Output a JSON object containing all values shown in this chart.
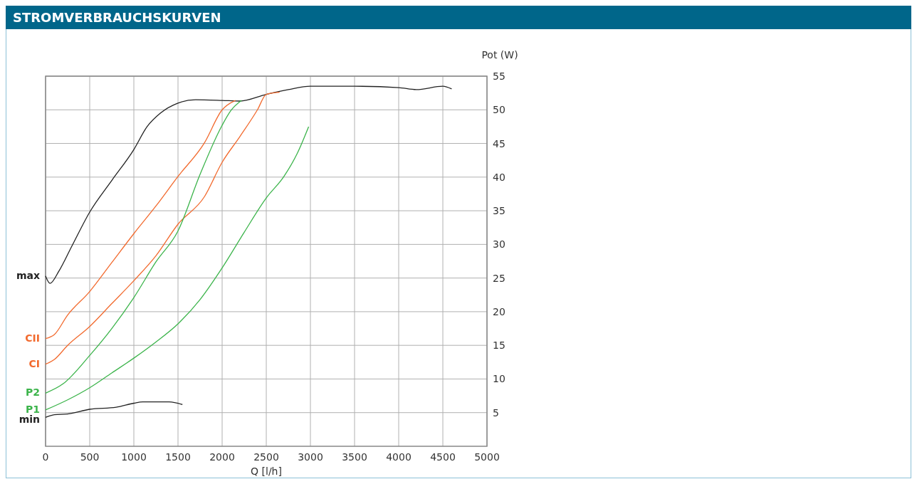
{
  "chart_data": {
    "type": "line",
    "title": "STROMVERBRAUCHSKURVEN",
    "xlabel": "Q [l/h]",
    "ylabel": "Pot (W)",
    "xlim": [
      0,
      5000
    ],
    "xticks": [
      0,
      500,
      1000,
      1500,
      2000,
      2500,
      3000,
      3500,
      4000,
      4500,
      5000
    ],
    "ylim": [
      0,
      55
    ],
    "yticks": [
      5,
      10,
      15,
      20,
      25,
      30,
      35,
      40,
      45,
      50,
      55
    ],
    "grid": true,
    "marker": "none",
    "line_style": "solid",
    "series": [
      {
        "name": "max",
        "color": "#222222",
        "x": [
          0,
          50,
          150,
          300,
          500,
          750,
          1000,
          1150,
          1300,
          1500,
          1700,
          2000,
          2200,
          2500,
          2750,
          3000,
          3500,
          4000,
          4200,
          4500,
          4600
        ],
        "values": [
          25.3,
          24.2,
          26.0,
          29.8,
          34.8,
          39.5,
          44.1,
          47.5,
          49.5,
          51.0,
          51.5,
          51.4,
          51.3,
          52.3,
          53.0,
          53.5,
          53.5,
          53.3,
          53.0,
          53.5,
          53.1
        ]
      },
      {
        "name": "CII",
        "color": "#f26a2e",
        "x": [
          0,
          100,
          250,
          500,
          750,
          1000,
          1250,
          1500,
          1800,
          2000,
          2150
        ],
        "values": [
          16.0,
          16.6,
          19.5,
          23.0,
          27.3,
          31.6,
          35.7,
          40.1,
          45.1,
          50.0,
          51.4
        ]
      },
      {
        "name": "CI",
        "color": "#f26a2e",
        "x": [
          0,
          100,
          250,
          500,
          750,
          1000,
          1250,
          1500,
          1800,
          2000,
          2200,
          2400,
          2500,
          2650
        ],
        "values": [
          12.2,
          12.9,
          15.0,
          17.8,
          21.2,
          24.6,
          28.3,
          33.0,
          37.1,
          42.2,
          46.0,
          50.0,
          52.3,
          52.6
        ]
      },
      {
        "name": "P2",
        "color": "#3cb44b",
        "x": [
          0,
          200,
          500,
          750,
          1000,
          1250,
          1500,
          1750,
          2000,
          2100,
          2220
        ],
        "values": [
          7.9,
          9.3,
          13.5,
          17.5,
          22.1,
          27.4,
          32.0,
          40.4,
          47.7,
          49.9,
          51.4
        ]
      },
      {
        "name": "P1",
        "color": "#3cb44b",
        "x": [
          0,
          250,
          500,
          750,
          1000,
          1250,
          1500,
          1750,
          2000,
          2250,
          2500,
          2700,
          2850,
          2980
        ],
        "values": [
          5.4,
          6.9,
          8.7,
          10.9,
          13.1,
          15.5,
          18.2,
          21.8,
          26.5,
          31.8,
          36.9,
          40.1,
          43.5,
          47.5
        ]
      },
      {
        "name": "min",
        "color": "#222222",
        "x": [
          0,
          100,
          250,
          500,
          800,
          1000,
          1100,
          1400,
          1550
        ],
        "values": [
          4.3,
          4.7,
          4.8,
          5.5,
          5.8,
          6.4,
          6.6,
          6.6,
          6.2
        ]
      }
    ]
  }
}
